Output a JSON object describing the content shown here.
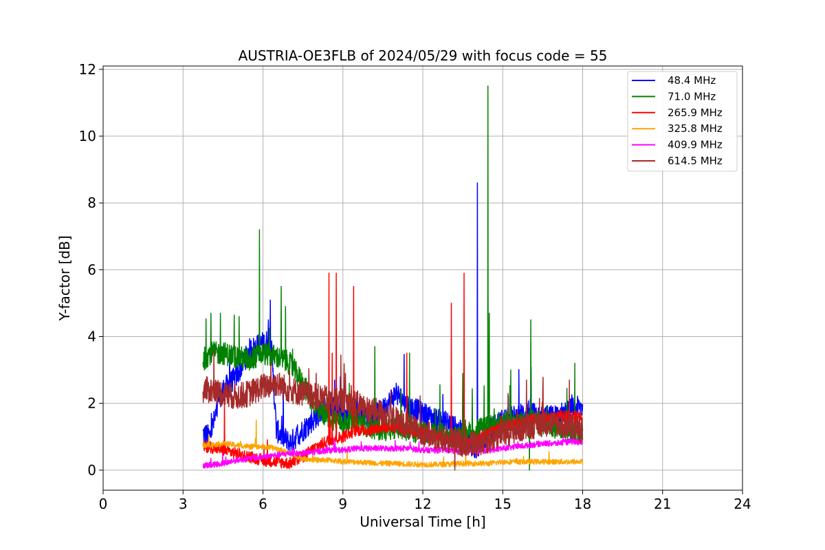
{
  "chart_data": {
    "type": "line",
    "title": "AUSTRIA-OE3FLB of 2024/05/29 with focus code = 55",
    "xlabel": "Universal Time [h]",
    "ylabel": "Y-factor [dB]",
    "xlim": [
      0,
      24
    ],
    "ylim": [
      -0.6,
      12.1
    ],
    "xticks": [
      0,
      3,
      6,
      9,
      12,
      15,
      18,
      21,
      24
    ],
    "yticks": [
      0,
      2,
      4,
      6,
      8,
      10,
      12
    ],
    "grid": true,
    "legend_position": "top-right",
    "x_range_of_data": [
      3.75,
      18.0
    ],
    "series": [
      {
        "name": " 48.4 MHz",
        "color": "#0000ff",
        "points": [
          [
            3.75,
            1.1
          ],
          [
            4.0,
            1.0
          ],
          [
            4.5,
            2.4
          ],
          [
            5.0,
            2.8
          ],
          [
            5.5,
            3.6
          ],
          [
            6.0,
            3.8
          ],
          [
            6.3,
            3.9
          ],
          [
            6.5,
            1.2
          ],
          [
            7.0,
            0.8
          ],
          [
            7.5,
            1.2
          ],
          [
            8.0,
            1.6
          ],
          [
            8.5,
            2.0
          ],
          [
            9.0,
            1.6
          ],
          [
            9.5,
            1.8
          ],
          [
            10.0,
            1.6
          ],
          [
            10.5,
            1.8
          ],
          [
            11.0,
            2.3
          ],
          [
            11.5,
            1.9
          ],
          [
            12.0,
            1.7
          ],
          [
            12.5,
            1.5
          ],
          [
            13.0,
            1.4
          ],
          [
            13.5,
            1.1
          ],
          [
            14.0,
            0.6
          ],
          [
            14.5,
            1.2
          ],
          [
            15.0,
            1.5
          ],
          [
            15.5,
            1.6
          ],
          [
            16.0,
            1.8
          ],
          [
            16.5,
            1.6
          ],
          [
            17.0,
            1.6
          ],
          [
            17.5,
            1.8
          ],
          [
            18.0,
            1.9
          ]
        ],
        "spikes": [
          [
            14.05,
            8.6
          ],
          [
            6.2,
            4.5
          ],
          [
            11.0,
            2.6
          ],
          [
            4.75,
            3.6
          ]
        ]
      },
      {
        "name": " 71.0 MHz",
        "color": "#008000",
        "points": [
          [
            3.75,
            3.3
          ],
          [
            4.0,
            3.5
          ],
          [
            4.5,
            3.5
          ],
          [
            5.0,
            3.4
          ],
          [
            5.5,
            3.3
          ],
          [
            6.0,
            3.5
          ],
          [
            6.5,
            3.4
          ],
          [
            7.0,
            3.2
          ],
          [
            7.5,
            2.6
          ],
          [
            8.0,
            1.8
          ],
          [
            8.5,
            1.6
          ],
          [
            9.0,
            1.4
          ],
          [
            9.5,
            1.5
          ],
          [
            10.0,
            1.3
          ],
          [
            10.5,
            1.2
          ],
          [
            11.0,
            1.3
          ],
          [
            11.5,
            1.2
          ],
          [
            12.0,
            1.1
          ],
          [
            12.5,
            1.1
          ],
          [
            13.0,
            1.0
          ],
          [
            13.5,
            1.0
          ],
          [
            14.0,
            1.2
          ],
          [
            14.5,
            1.3
          ],
          [
            15.0,
            1.4
          ],
          [
            15.5,
            1.4
          ],
          [
            16.0,
            1.5
          ],
          [
            16.5,
            1.4
          ],
          [
            17.0,
            1.3
          ],
          [
            17.5,
            1.2
          ],
          [
            18.0,
            1.1
          ]
        ],
        "spikes": [
          [
            5.87,
            7.2
          ],
          [
            14.45,
            11.5
          ],
          [
            14.5,
            4.7
          ],
          [
            6.68,
            5.5
          ],
          [
            6.85,
            4.9
          ],
          [
            4.05,
            4.7
          ],
          [
            5.1,
            4.6
          ],
          [
            4.4,
            4.7
          ],
          [
            16.05,
            4.5
          ],
          [
            10.2,
            3.7
          ],
          [
            11.5,
            3.5
          ],
          [
            13.5,
            2.9
          ],
          [
            15.3,
            3.0
          ],
          [
            17.7,
            3.2
          ],
          [
            16.0,
            0.0
          ]
        ]
      },
      {
        "name": "265.9 MHz",
        "color": "#ff0000",
        "points": [
          [
            3.75,
            0.7
          ],
          [
            4.0,
            0.7
          ],
          [
            4.5,
            0.6
          ],
          [
            5.0,
            0.5
          ],
          [
            5.5,
            0.4
          ],
          [
            6.0,
            0.3
          ],
          [
            6.5,
            0.25
          ],
          [
            7.0,
            0.2
          ],
          [
            7.5,
            0.4
          ],
          [
            8.0,
            0.7
          ],
          [
            8.5,
            0.9
          ],
          [
            9.0,
            1.0
          ],
          [
            9.5,
            1.2
          ],
          [
            10.0,
            1.2
          ],
          [
            10.5,
            1.3
          ],
          [
            11.0,
            1.3
          ],
          [
            11.5,
            1.2
          ],
          [
            12.0,
            1.1
          ],
          [
            12.5,
            1.0
          ],
          [
            13.0,
            0.9
          ],
          [
            13.5,
            0.8
          ],
          [
            14.0,
            0.9
          ],
          [
            14.5,
            1.1
          ],
          [
            15.0,
            1.3
          ],
          [
            15.5,
            1.4
          ],
          [
            16.0,
            1.5
          ],
          [
            16.5,
            1.5
          ],
          [
            17.0,
            1.6
          ],
          [
            17.5,
            1.6
          ],
          [
            18.0,
            1.6
          ]
        ],
        "spikes": [
          [
            8.48,
            5.9
          ],
          [
            8.75,
            5.9
          ],
          [
            9.4,
            5.5
          ],
          [
            13.07,
            5.0
          ],
          [
            13.55,
            5.9
          ],
          [
            11.4,
            3.5
          ],
          [
            8.6,
            3.5
          ],
          [
            4.55,
            2.2
          ]
        ]
      },
      {
        "name": "325.8 MHz",
        "color": "#ffa500",
        "points": [
          [
            3.75,
            0.75
          ],
          [
            4.0,
            0.75
          ],
          [
            4.5,
            0.8
          ],
          [
            5.0,
            0.75
          ],
          [
            5.5,
            0.7
          ],
          [
            6.0,
            0.7
          ],
          [
            6.5,
            0.65
          ],
          [
            7.0,
            0.5
          ],
          [
            7.5,
            0.35
          ],
          [
            8.0,
            0.3
          ],
          [
            8.5,
            0.3
          ],
          [
            9.0,
            0.25
          ],
          [
            9.5,
            0.25
          ],
          [
            10.0,
            0.22
          ],
          [
            10.5,
            0.2
          ],
          [
            11.0,
            0.2
          ],
          [
            11.5,
            0.18
          ],
          [
            12.0,
            0.17
          ],
          [
            12.5,
            0.17
          ],
          [
            13.0,
            0.18
          ],
          [
            13.5,
            0.2
          ],
          [
            14.0,
            0.2
          ],
          [
            14.5,
            0.2
          ],
          [
            15.0,
            0.25
          ],
          [
            15.5,
            0.25
          ],
          [
            16.0,
            0.25
          ],
          [
            16.5,
            0.25
          ],
          [
            17.0,
            0.25
          ],
          [
            17.5,
            0.25
          ],
          [
            18.0,
            0.25
          ]
        ],
        "spikes": [
          [
            5.75,
            1.5
          ]
        ]
      },
      {
        "name": "409.9 MHz",
        "color": "#ff00ff",
        "points": [
          [
            3.75,
            0.15
          ],
          [
            4.0,
            0.15
          ],
          [
            4.5,
            0.2
          ],
          [
            5.0,
            0.3
          ],
          [
            5.5,
            0.35
          ],
          [
            6.0,
            0.4
          ],
          [
            6.5,
            0.45
          ],
          [
            7.0,
            0.5
          ],
          [
            7.5,
            0.5
          ],
          [
            8.0,
            0.55
          ],
          [
            8.5,
            0.6
          ],
          [
            9.0,
            0.6
          ],
          [
            9.5,
            0.65
          ],
          [
            10.0,
            0.65
          ],
          [
            10.5,
            0.65
          ],
          [
            11.0,
            0.65
          ],
          [
            11.5,
            0.65
          ],
          [
            12.0,
            0.6
          ],
          [
            12.5,
            0.6
          ],
          [
            13.0,
            0.6
          ],
          [
            13.5,
            0.55
          ],
          [
            14.0,
            0.55
          ],
          [
            14.5,
            0.6
          ],
          [
            15.0,
            0.65
          ],
          [
            15.5,
            0.7
          ],
          [
            16.0,
            0.75
          ],
          [
            16.5,
            0.8
          ],
          [
            17.0,
            0.8
          ],
          [
            17.5,
            0.85
          ],
          [
            18.0,
            0.85
          ]
        ],
        "spikes": []
      },
      {
        "name": "614.5 MHz",
        "color": "#a52a2a",
        "points": [
          [
            3.75,
            2.4
          ],
          [
            4.0,
            2.4
          ],
          [
            4.5,
            2.3
          ],
          [
            5.0,
            2.2
          ],
          [
            5.5,
            2.3
          ],
          [
            6.0,
            2.5
          ],
          [
            6.5,
            2.6
          ],
          [
            7.0,
            2.4
          ],
          [
            7.5,
            2.3
          ],
          [
            8.0,
            2.2
          ],
          [
            8.5,
            2.1
          ],
          [
            9.0,
            2.1
          ],
          [
            9.5,
            2.0
          ],
          [
            10.0,
            1.8
          ],
          [
            10.5,
            1.7
          ],
          [
            11.0,
            1.5
          ],
          [
            11.5,
            1.3
          ],
          [
            12.0,
            1.1
          ],
          [
            12.5,
            1.0
          ],
          [
            13.0,
            0.9
          ],
          [
            13.5,
            0.8
          ],
          [
            14.0,
            0.8
          ],
          [
            14.5,
            0.9
          ],
          [
            15.0,
            1.1
          ],
          [
            15.5,
            1.2
          ],
          [
            16.0,
            1.3
          ],
          [
            16.5,
            1.4
          ],
          [
            17.0,
            1.4
          ],
          [
            17.5,
            1.3
          ],
          [
            18.0,
            1.2
          ]
        ],
        "spikes": [
          [
            6.3,
            3.2
          ],
          [
            7.0,
            3.0
          ],
          [
            8.0,
            2.9
          ],
          [
            9.1,
            2.9
          ],
          [
            15.2,
            2.3
          ],
          [
            16.5,
            2.5
          ],
          [
            17.5,
            2.7
          ],
          [
            13.2,
            0.0
          ]
        ]
      }
    ]
  }
}
